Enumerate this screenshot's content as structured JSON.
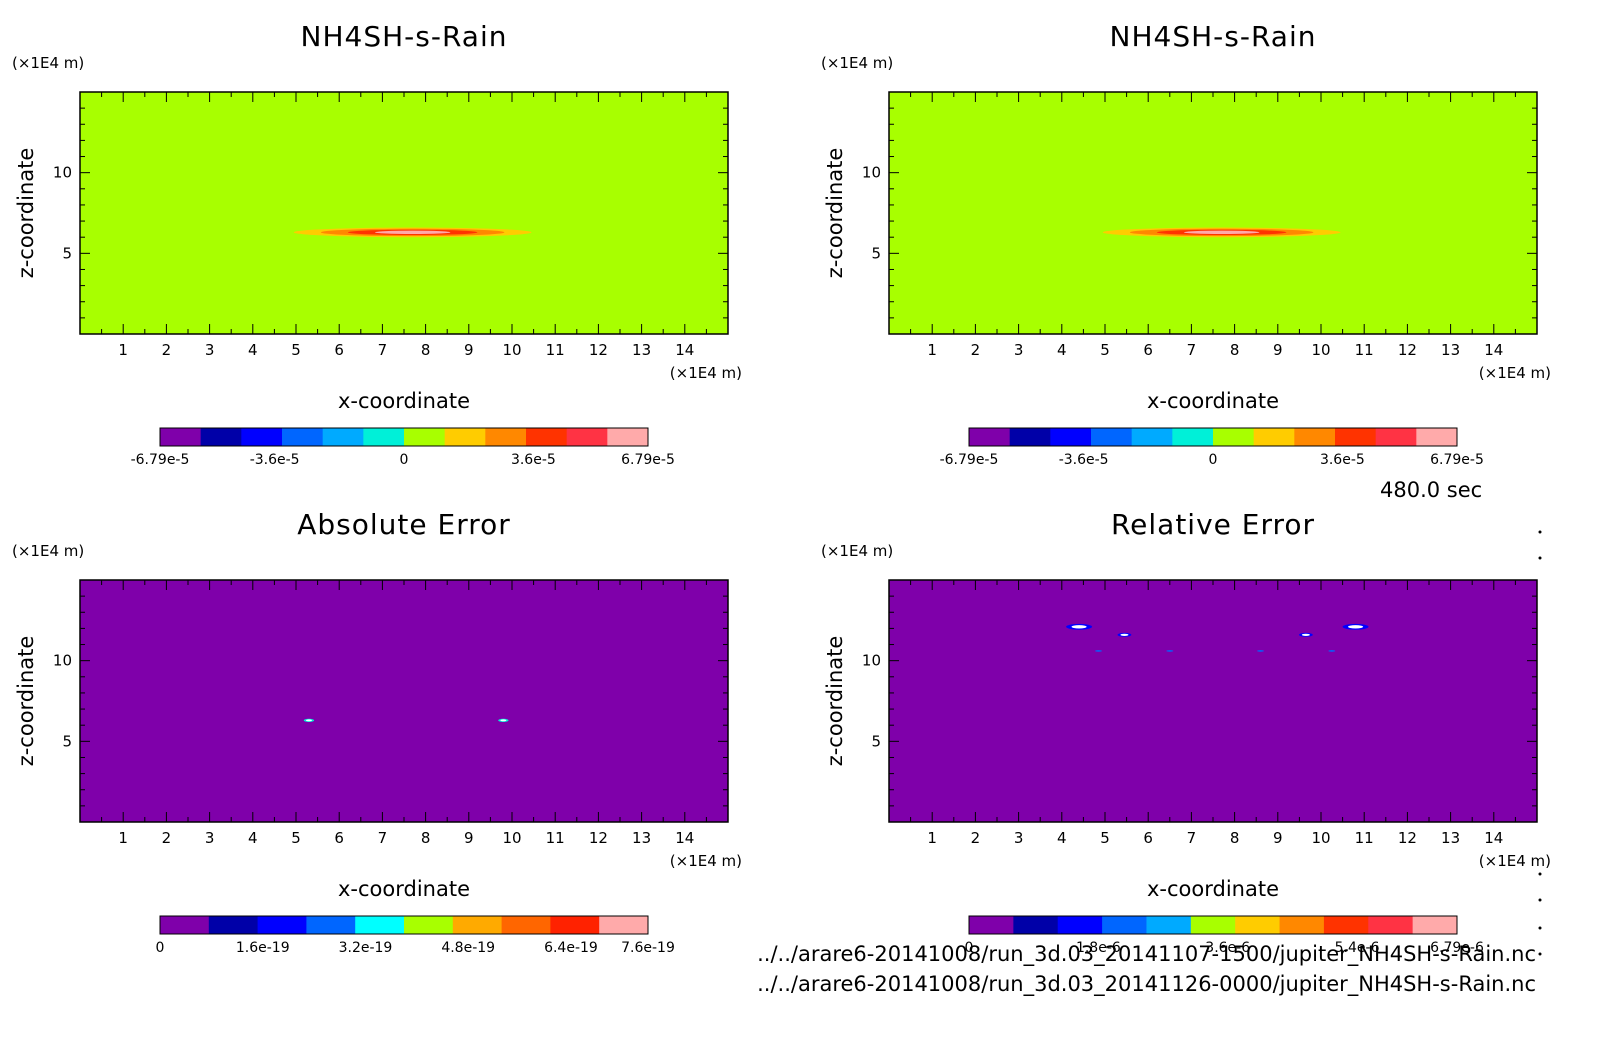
{
  "figure": {
    "time_label": "480.0 sec",
    "files": [
      "../../arare6-20141008/run_3d.03_20141107-1500/jupiter_NH4SH-s-Rain.nc",
      "../../arare6-20141008/run_3d.03_20141126-0000/jupiter_NH4SH-s-Rain.nc"
    ]
  },
  "chart_data": [
    {
      "type": "heatmap",
      "title": "NH4SH-s-Rain",
      "xlabel": "x-coordinate",
      "ylabel": "z-coordinate",
      "x_unit": "(×1E4 m)",
      "y_unit": "(×1E4 m)",
      "xlim": [
        0,
        15
      ],
      "ylim": [
        0,
        15
      ],
      "xticks": [
        "1",
        "2",
        "3",
        "4",
        "5",
        "6",
        "7",
        "8",
        "9",
        "10",
        "11",
        "12",
        "13",
        "14"
      ],
      "yticks": [
        "5",
        "10"
      ],
      "background_color": "#a8ff00",
      "colorbar": {
        "colors": [
          "#7f00aa",
          "#0000a8",
          "#0000ff",
          "#0066ff",
          "#00aaff",
          "#00f0d8",
          "#a8ff00",
          "#ffcc00",
          "#ff8800",
          "#ff3300",
          "#ff3344",
          "#ffaaaa"
        ],
        "labels": [
          "-6.79e-5",
          "-3.6e-5",
          "0",
          "3.6e-5",
          "6.79e-5"
        ],
        "range": [
          -6.79e-05,
          6.79e-05
        ]
      },
      "features": [
        {
          "shape": "lens",
          "x_center": 7.7,
          "z_center": 6.3,
          "half_width": 2.75,
          "half_height": 0.3,
          "colors": [
            "#ffcc00",
            "#ff8800",
            "#ff3300",
            "#ffaaaa"
          ]
        }
      ]
    },
    {
      "type": "heatmap",
      "title": "NH4SH-s-Rain",
      "xlabel": "x-coordinate",
      "ylabel": "z-coordinate",
      "x_unit": "(×1E4 m)",
      "y_unit": "(×1E4 m)",
      "xlim": [
        0,
        15
      ],
      "ylim": [
        0,
        15
      ],
      "xticks": [
        "1",
        "2",
        "3",
        "4",
        "5",
        "6",
        "7",
        "8",
        "9",
        "10",
        "11",
        "12",
        "13",
        "14"
      ],
      "yticks": [
        "5",
        "10"
      ],
      "background_color": "#a8ff00",
      "colorbar": {
        "colors": [
          "#7f00aa",
          "#0000a8",
          "#0000ff",
          "#0066ff",
          "#00aaff",
          "#00f0d8",
          "#a8ff00",
          "#ffcc00",
          "#ff8800",
          "#ff3300",
          "#ff3344",
          "#ffaaaa"
        ],
        "labels": [
          "-6.79e-5",
          "-3.6e-5",
          "0",
          "3.6e-5",
          "6.79e-5"
        ],
        "range": [
          -6.79e-05,
          6.79e-05
        ]
      },
      "features": [
        {
          "shape": "lens",
          "x_center": 7.7,
          "z_center": 6.3,
          "half_width": 2.75,
          "half_height": 0.3,
          "colors": [
            "#ffcc00",
            "#ff8800",
            "#ff3300",
            "#ffaaaa"
          ]
        }
      ]
    },
    {
      "type": "heatmap",
      "title": "Absolute Error",
      "xlabel": "x-coordinate",
      "ylabel": "z-coordinate",
      "x_unit": "(×1E4 m)",
      "y_unit": "(×1E4 m)",
      "xlim": [
        0,
        15
      ],
      "ylim": [
        0,
        15
      ],
      "xticks": [
        "1",
        "2",
        "3",
        "4",
        "5",
        "6",
        "7",
        "8",
        "9",
        "10",
        "11",
        "12",
        "13",
        "14"
      ],
      "yticks": [
        "5",
        "10"
      ],
      "background_color": "#7f00aa",
      "colorbar": {
        "colors": [
          "#7f00aa",
          "#0000a8",
          "#0000ff",
          "#0066ff",
          "#00ffff",
          "#a8ff00",
          "#ffaa00",
          "#ff6600",
          "#ff2200",
          "#ffaaaa"
        ],
        "labels": [
          "0",
          "1.6e-19",
          "3.2e-19",
          "4.8e-19",
          "6.4e-19",
          "7.6e-19"
        ],
        "range": [
          0,
          7.6e-19
        ]
      },
      "features": [
        {
          "shape": "blob",
          "x_center": 5.3,
          "z_center": 6.3,
          "half_width": 0.12,
          "half_height": 0.1,
          "colors": [
            "#00f0d8",
            "#ffffff"
          ]
        },
        {
          "shape": "blob",
          "x_center": 9.8,
          "z_center": 6.3,
          "half_width": 0.12,
          "half_height": 0.1,
          "colors": [
            "#00f0d8",
            "#ffffff"
          ]
        }
      ]
    },
    {
      "type": "heatmap",
      "title": "Relative Error",
      "xlabel": "x-coordinate",
      "ylabel": "z-coordinate",
      "x_unit": "(×1E4 m)",
      "y_unit": "(×1E4 m)",
      "xlim": [
        0,
        15
      ],
      "ylim": [
        0,
        15
      ],
      "xticks": [
        "1",
        "2",
        "3",
        "4",
        "5",
        "6",
        "7",
        "8",
        "9",
        "10",
        "11",
        "12",
        "13",
        "14"
      ],
      "yticks": [
        "5",
        "10"
      ],
      "background_color": "#7f00aa",
      "colorbar": {
        "colors": [
          "#7f00aa",
          "#0000a8",
          "#0000ff",
          "#0066ff",
          "#00aaff",
          "#a8ff00",
          "#ffcc00",
          "#ff8800",
          "#ff3300",
          "#ff3344",
          "#ffaaaa"
        ],
        "labels": [
          "0",
          "1.8e-6",
          "3.6e-6",
          "5.4e-6",
          "6.79e-6"
        ],
        "range": [
          0,
          6.79e-06
        ]
      },
      "features": [
        {
          "shape": "blob",
          "x_center": 4.4,
          "z_center": 12.1,
          "half_width": 0.3,
          "half_height": 0.18,
          "colors": [
            "#0000ff",
            "#ffffff"
          ]
        },
        {
          "shape": "blob",
          "x_center": 10.8,
          "z_center": 12.1,
          "half_width": 0.3,
          "half_height": 0.18,
          "colors": [
            "#0000ff",
            "#ffffff"
          ]
        },
        {
          "shape": "blob",
          "x_center": 5.45,
          "z_center": 11.6,
          "half_width": 0.16,
          "half_height": 0.12,
          "colors": [
            "#0000ff",
            "#ffffff"
          ]
        },
        {
          "shape": "blob",
          "x_center": 9.65,
          "z_center": 11.6,
          "half_width": 0.16,
          "half_height": 0.12,
          "colors": [
            "#0000ff",
            "#ffffff"
          ]
        },
        {
          "shape": "dot",
          "x_center": 4.85,
          "z_center": 10.6,
          "half_width": 0.08,
          "half_height": 0.05,
          "colors": [
            "#0066ff"
          ]
        },
        {
          "shape": "dot",
          "x_center": 6.5,
          "z_center": 10.6,
          "half_width": 0.08,
          "half_height": 0.05,
          "colors": [
            "#0066ff"
          ]
        },
        {
          "shape": "dot",
          "x_center": 8.6,
          "z_center": 10.6,
          "half_width": 0.08,
          "half_height": 0.05,
          "colors": [
            "#0066ff"
          ]
        },
        {
          "shape": "dot",
          "x_center": 10.25,
          "z_center": 10.6,
          "half_width": 0.08,
          "half_height": 0.05,
          "colors": [
            "#0066ff"
          ]
        }
      ]
    }
  ]
}
